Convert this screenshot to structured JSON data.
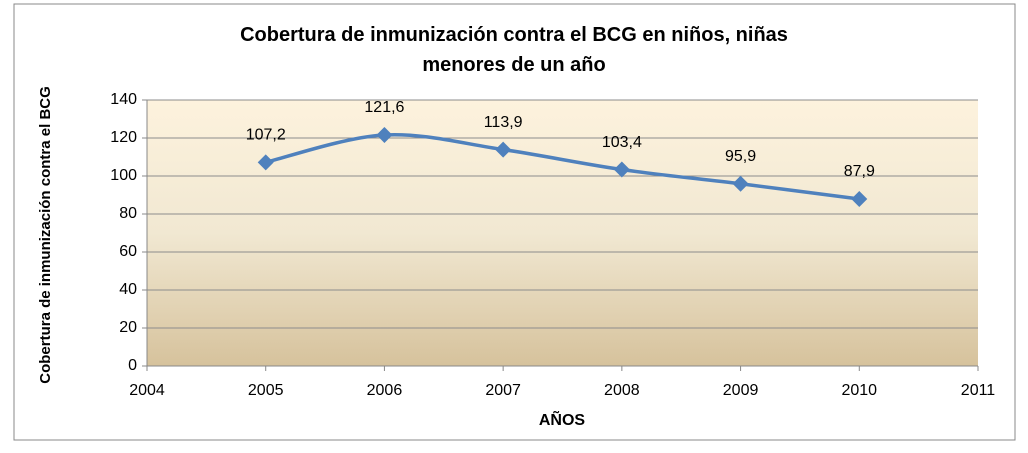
{
  "chart_data": {
    "type": "line",
    "title": "Cobertura de inmunización contra el BCG en niños, niñas menores de un año",
    "x_label": "AÑOS",
    "y_label": "Cobertura de inmunización contra el BCG",
    "x": [
      2005,
      2006,
      2007,
      2008,
      2009,
      2010
    ],
    "series": [
      {
        "name": "Cobertura",
        "color": "#4f81bd",
        "values": [
          107.2,
          121.6,
          113.9,
          103.4,
          95.9,
          87.9
        ],
        "value_labels": [
          "107,2",
          "121,6",
          "113,9",
          "103,4",
          "95,9",
          "87,9"
        ]
      }
    ],
    "xlim": [
      2004,
      2011
    ],
    "xticks": [
      2004,
      2005,
      2006,
      2007,
      2008,
      2009,
      2010,
      2011
    ],
    "ylim": [
      0,
      140
    ],
    "yticks": [
      0,
      20,
      40,
      60,
      80,
      100,
      120,
      140
    ],
    "grid": true,
    "smooth": true
  }
}
